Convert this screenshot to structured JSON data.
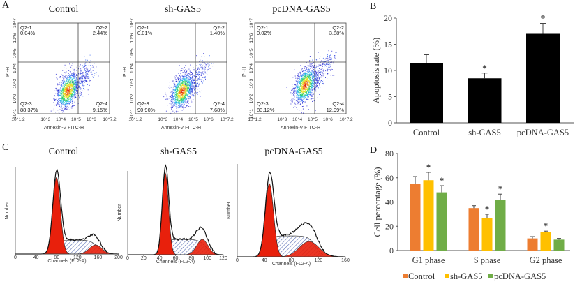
{
  "panels": {
    "A": {
      "label": "A",
      "x_axis_label": "Annexin-V FITC-H",
      "y_axis_label": "PI-H",
      "x_ticks": [
        "10^1.2",
        "10^3",
        "10^4",
        "10^5",
        "10^6",
        "10^7.2"
      ],
      "y_ticks": [
        "10^1",
        "10^2",
        "10^3",
        "10^4",
        "10^5",
        "10^6",
        "10^7"
      ],
      "plots": [
        {
          "title": "Control",
          "quadrants": {
            "q1": {
              "name": "Q2-1",
              "value": "0.04%"
            },
            "q2": {
              "name": "Q2-2",
              "value": "2.44%"
            },
            "q3": {
              "name": "Q2-3",
              "value": "88.37%"
            },
            "q4": {
              "name": "Q2-4",
              "value": "9.15%"
            }
          }
        },
        {
          "title": "sh-GAS5",
          "quadrants": {
            "q1": {
              "name": "Q2-1",
              "value": "0.01%"
            },
            "q2": {
              "name": "Q2-2",
              "value": "1.40%"
            },
            "q3": {
              "name": "Q2-3",
              "value": "90.90%"
            },
            "q4": {
              "name": "Q2-4",
              "value": "7.68%"
            }
          }
        },
        {
          "title": "pcDNA-GAS5",
          "quadrants": {
            "q1": {
              "name": "Q2-1",
              "value": "0.02%"
            },
            "q2": {
              "name": "Q2-2",
              "value": "3.88%"
            },
            "q3": {
              "name": "Q2-3",
              "value": "83.12%"
            },
            "q4": {
              "name": "Q2-4",
              "value": "12.99%"
            }
          }
        }
      ]
    },
    "C": {
      "label": "C",
      "x_axis_label": "Channels (FL2-A)",
      "y_axis_label": "Number",
      "plots": [
        {
          "title": "Control",
          "x_ticks": [
            "0",
            "40",
            "80",
            "120",
            "160",
            "200"
          ]
        },
        {
          "title": "sh-GAS5",
          "x_ticks": [
            "0",
            "20",
            "40",
            "60",
            "80",
            "100",
            "120"
          ]
        },
        {
          "title": "pcDNA-GAS5",
          "x_ticks": [
            "0",
            "40",
            "80",
            "120",
            "160"
          ]
        }
      ],
      "colors": {
        "g1_g2_fill": "#e8200c",
        "s_hatch": "#5a6fb5"
      }
    }
  },
  "chart_data": [
    {
      "panel": "B",
      "type": "bar",
      "label": "B",
      "categories": [
        "Control",
        "sh-GAS5",
        "pcDNA-GAS5"
      ],
      "values": [
        11.4,
        8.5,
        17.0
      ],
      "errors": [
        1.6,
        1.0,
        2.0
      ],
      "significance": [
        "",
        "*",
        "*"
      ],
      "ylabel": "Apoptosis rate (%)",
      "ylim": [
        0,
        20
      ],
      "yticks": [
        "0",
        "5",
        "10",
        "15",
        "20"
      ],
      "color": "#000000",
      "grid": false
    },
    {
      "panel": "D",
      "type": "bar",
      "label": "D",
      "categories": [
        "G1 phase",
        "S phase",
        "G2 phase"
      ],
      "series": [
        {
          "name": "Control",
          "color": "#ED7D31",
          "values": [
            55,
            35,
            10
          ],
          "errors": [
            6,
            2,
            1.5
          ],
          "significance": [
            "",
            "",
            ""
          ]
        },
        {
          "name": "sh-GAS5",
          "color": "#FFC000",
          "values": [
            58,
            27,
            15
          ],
          "errors": [
            6.5,
            3,
            1
          ],
          "significance": [
            "*",
            "*",
            "*"
          ]
        },
        {
          "name": "pcDNA-GAS5",
          "color": "#70AD47",
          "values": [
            48,
            42,
            9
          ],
          "errors": [
            5.5,
            4.5,
            1
          ],
          "significance": [
            "*",
            "*",
            ""
          ]
        }
      ],
      "ylabel": "Cell percentage (%)",
      "ylim": [
        0,
        80
      ],
      "yticks": [
        "0",
        "20",
        "40",
        "60",
        "80"
      ],
      "legend": "bottom",
      "grid": false
    }
  ]
}
